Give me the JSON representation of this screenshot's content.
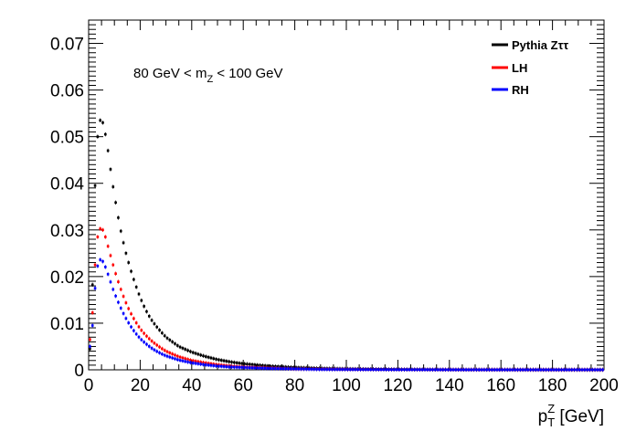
{
  "chart_data": {
    "type": "scatter",
    "xlim": [
      0,
      200
    ],
    "ylim": [
      0,
      0.075
    ],
    "x_ticks": [
      "0",
      "20",
      "40",
      "60",
      "80",
      "100",
      "120",
      "140",
      "160",
      "180",
      "200"
    ],
    "x_tick_values": [
      0,
      20,
      40,
      60,
      80,
      100,
      120,
      140,
      160,
      180,
      200
    ],
    "y_ticks": [
      "0",
      "0.01",
      "0.02",
      "0.03",
      "0.04",
      "0.05",
      "0.06",
      "0.07"
    ],
    "y_tick_values": [
      0,
      0.01,
      0.02,
      0.03,
      0.04,
      0.05,
      0.06,
      0.07
    ],
    "xlabel": {
      "main": "p",
      "sub": "T",
      "sup": "Z",
      "unit": " [GeV]"
    },
    "annotation": {
      "left": "80 GeV < m",
      "sub": "Z",
      "right": " < 100 GeV"
    },
    "legend_position": "top-right",
    "grid": false,
    "series": [
      {
        "name": "Pythia Zττ",
        "color": "#000000",
        "points": [
          [
            1,
            0.0045
          ],
          [
            2,
            0.032
          ],
          [
            3,
            0.047
          ],
          [
            4,
            0.053
          ],
          [
            5,
            0.054
          ],
          [
            6,
            0.052
          ],
          [
            7,
            0.049
          ],
          [
            8,
            0.045
          ],
          [
            9,
            0.041
          ],
          [
            10,
            0.0375
          ],
          [
            12,
            0.031
          ],
          [
            14,
            0.026
          ],
          [
            16,
            0.022
          ],
          [
            18,
            0.0185
          ],
          [
            20,
            0.0155
          ],
          [
            22,
            0.013
          ],
          [
            24,
            0.011
          ],
          [
            26,
            0.0095
          ],
          [
            28,
            0.0082
          ],
          [
            30,
            0.007
          ],
          [
            35,
            0.005
          ],
          [
            40,
            0.0038
          ],
          [
            45,
            0.0029
          ],
          [
            50,
            0.0022
          ],
          [
            55,
            0.0017
          ],
          [
            60,
            0.0013
          ],
          [
            70,
            0.0008
          ],
          [
            80,
            0.0005
          ],
          [
            90,
            0.0003
          ],
          [
            100,
            0.0002
          ],
          [
            120,
            0.0001
          ],
          [
            140,
            5e-05
          ],
          [
            160,
            3e-05
          ],
          [
            180,
            2e-05
          ],
          [
            200,
            1e-05
          ]
        ]
      },
      {
        "name": "LH",
        "color": "#ff0000",
        "points": [
          [
            1,
            0.0065
          ],
          [
            2,
            0.018
          ],
          [
            3,
            0.027
          ],
          [
            4,
            0.03
          ],
          [
            5,
            0.0305
          ],
          [
            6,
            0.0295
          ],
          [
            7,
            0.0275
          ],
          [
            8,
            0.0255
          ],
          [
            9,
            0.0235
          ],
          [
            10,
            0.0215
          ],
          [
            12,
            0.018
          ],
          [
            14,
            0.015
          ],
          [
            16,
            0.0125
          ],
          [
            18,
            0.0105
          ],
          [
            20,
            0.0088
          ],
          [
            22,
            0.0075
          ],
          [
            24,
            0.0064
          ],
          [
            26,
            0.0055
          ],
          [
            28,
            0.0047
          ],
          [
            30,
            0.004
          ],
          [
            35,
            0.0028
          ],
          [
            40,
            0.002
          ],
          [
            45,
            0.0015
          ],
          [
            50,
            0.0011
          ],
          [
            55,
            0.0008
          ],
          [
            60,
            0.0006
          ],
          [
            70,
            0.0004
          ],
          [
            80,
            0.0002
          ],
          [
            90,
            0.00015
          ],
          [
            100,
            0.0001
          ],
          [
            120,
            5e-05
          ],
          [
            140,
            3e-05
          ],
          [
            160,
            2e-05
          ],
          [
            180,
            1e-05
          ],
          [
            200,
            1e-05
          ]
        ]
      },
      {
        "name": "RH",
        "color": "#0000ff",
        "points": [
          [
            1,
            0.005
          ],
          [
            2,
            0.014
          ],
          [
            3,
            0.021
          ],
          [
            4,
            0.0235
          ],
          [
            5,
            0.0237
          ],
          [
            6,
            0.0228
          ],
          [
            7,
            0.0213
          ],
          [
            8,
            0.0197
          ],
          [
            9,
            0.018
          ],
          [
            10,
            0.0165
          ],
          [
            12,
            0.0138
          ],
          [
            14,
            0.0115
          ],
          [
            16,
            0.0096
          ],
          [
            18,
            0.008
          ],
          [
            20,
            0.0067
          ],
          [
            22,
            0.0057
          ],
          [
            24,
            0.0048
          ],
          [
            26,
            0.0041
          ],
          [
            28,
            0.0035
          ],
          [
            30,
            0.003
          ],
          [
            35,
            0.0021
          ],
          [
            40,
            0.0015
          ],
          [
            45,
            0.0011
          ],
          [
            50,
            0.0008
          ],
          [
            55,
            0.0006
          ],
          [
            60,
            0.0005
          ],
          [
            70,
            0.0003
          ],
          [
            80,
            0.0002
          ],
          [
            90,
            0.0001
          ],
          [
            100,
            8e-05
          ],
          [
            120,
            4e-05
          ],
          [
            140,
            2e-05
          ],
          [
            160,
            1e-05
          ],
          [
            180,
            1e-05
          ],
          [
            200,
            1e-05
          ]
        ]
      }
    ]
  }
}
